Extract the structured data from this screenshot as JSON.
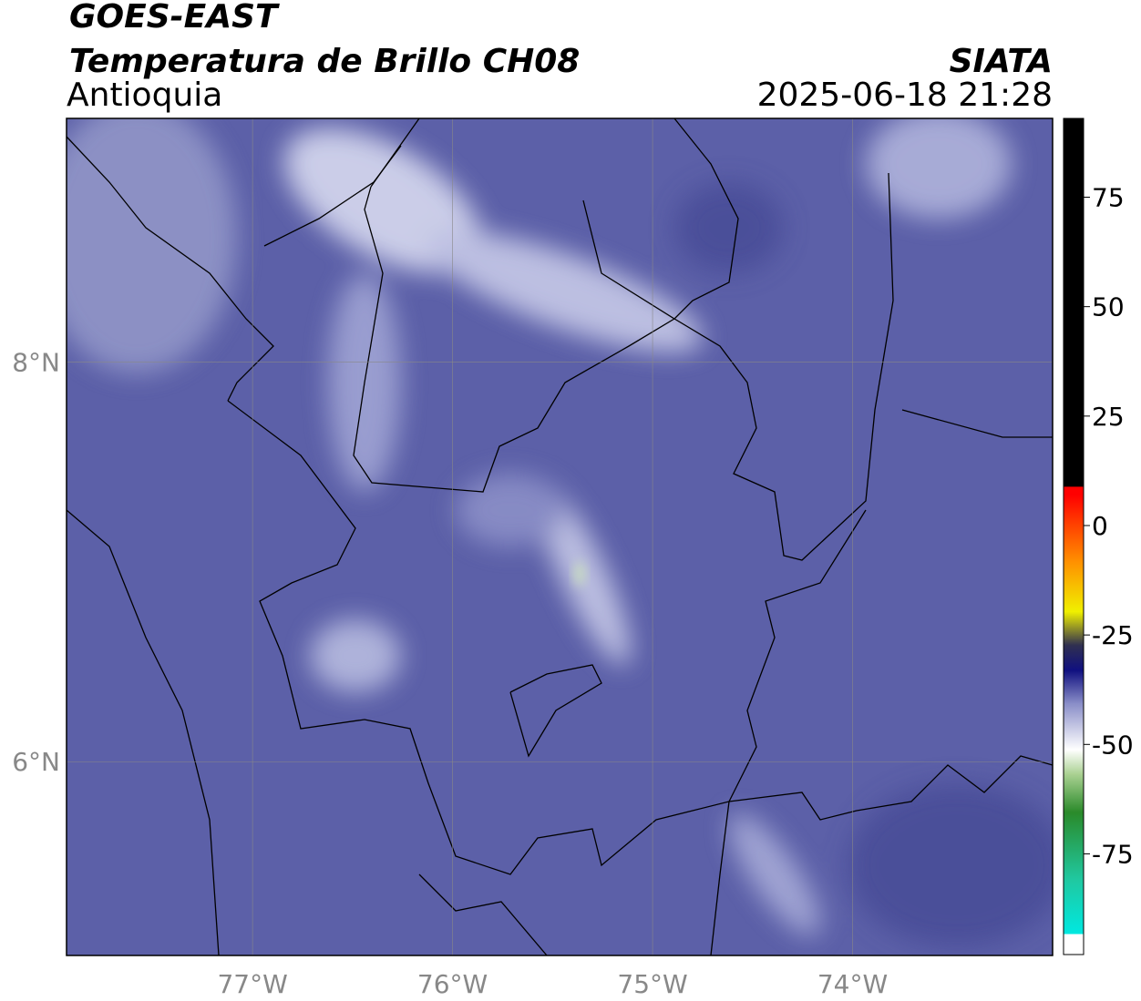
{
  "header": {
    "title": "GOES-EAST",
    "subtitle": "Temperatura de Brillo CH08",
    "region": "Antioquia",
    "source": "SIATA",
    "datetime": "2025-06-18 21:28"
  },
  "map": {
    "lonlim": [
      -77.93,
      -73.0
    ],
    "latlim": [
      5.03,
      9.22
    ],
    "lon_ticks": [
      {
        "value": -77,
        "label": "77°W"
      },
      {
        "value": -76,
        "label": "76°W"
      },
      {
        "value": -75,
        "label": "75°W"
      },
      {
        "value": -74,
        "label": "74°W"
      }
    ],
    "lat_ticks": [
      {
        "value": 8,
        "label": "8°N"
      },
      {
        "value": 6,
        "label": "6°N"
      }
    ],
    "grid": true
  },
  "colorbar": {
    "lim": [
      -98,
      93
    ],
    "ticks": [
      75,
      50,
      25,
      0,
      -25,
      -50,
      -75
    ]
  }
}
